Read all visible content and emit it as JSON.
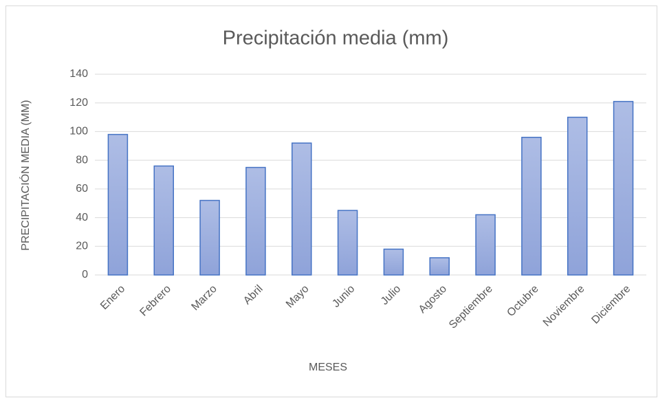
{
  "chart_data": {
    "type": "bar",
    "title": "Precipitación media (mm)",
    "x_label": "MESES",
    "y_label": "PRECIPITACIÓN MEDIA (MM)",
    "categories": [
      "Enero",
      "Febrero",
      "Marzo",
      "Abril",
      "Mayo",
      "Junio",
      "Julio",
      "Agosto",
      "Septiembre",
      "Octubre",
      "Noviembre",
      "Diciembre"
    ],
    "values": [
      98,
      76,
      52,
      75,
      92,
      45,
      18,
      12,
      42,
      96,
      110,
      121
    ],
    "color": "#4472c4",
    "ylim": [
      0,
      140
    ],
    "yticks": [
      0,
      20,
      40,
      60,
      80,
      100,
      120,
      140
    ],
    "grid": true
  }
}
